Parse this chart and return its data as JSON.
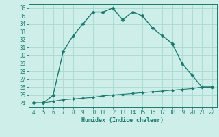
{
  "xlabel": "Humidex (Indice chaleur)",
  "ylabel": "",
  "x_main": [
    4,
    5,
    6,
    7,
    8,
    9,
    10,
    11,
    12,
    13,
    14,
    15,
    16,
    17,
    18,
    19,
    20,
    21,
    22
  ],
  "y_main": [
    24,
    24,
    25,
    30.5,
    32.5,
    34,
    35.5,
    35.5,
    36,
    34.5,
    35.5,
    35,
    33.5,
    32.5,
    31.5,
    29,
    27.5,
    26,
    26
  ],
  "x_flat": [
    4,
    5,
    6,
    7,
    8,
    9,
    10,
    11,
    12,
    13,
    14,
    15,
    16,
    17,
    18,
    19,
    20,
    21,
    22
  ],
  "y_flat": [
    24,
    24,
    24.2,
    24.4,
    24.5,
    24.6,
    24.7,
    24.9,
    25.0,
    25.1,
    25.2,
    25.3,
    25.4,
    25.5,
    25.6,
    25.7,
    25.8,
    26.0,
    26.0
  ],
  "line_color": "#1a7a6e",
  "bg_color": "#ceeee9",
  "grid_color": "#aad8d2",
  "xlim": [
    3.5,
    22.5
  ],
  "ylim": [
    23.5,
    36.5
  ],
  "xticks": [
    4,
    5,
    6,
    7,
    8,
    9,
    10,
    11,
    12,
    13,
    14,
    15,
    16,
    17,
    18,
    19,
    20,
    21,
    22
  ],
  "yticks": [
    24,
    25,
    26,
    27,
    28,
    29,
    30,
    31,
    32,
    33,
    34,
    35,
    36
  ]
}
